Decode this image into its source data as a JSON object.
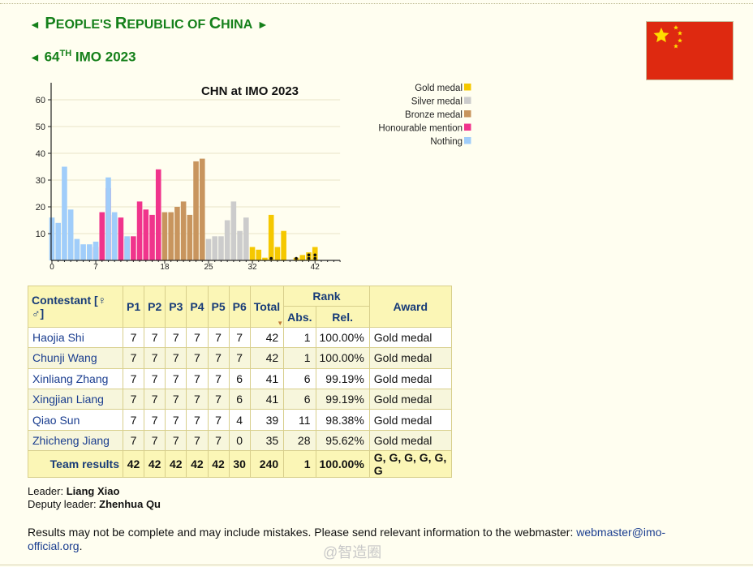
{
  "heading": {
    "country_arrow_left": "◄",
    "country_first_p": "P",
    "country_rest1": "EOPLE'S ",
    "country_first_r": "R",
    "country_rest2": "EPUBLIC OF ",
    "country_first_c": "C",
    "country_rest3": "HINA",
    "country_arrow_right": "►",
    "imo_arrow": "◄",
    "imo_num": "64",
    "imo_suffix": "TH",
    "imo_rest": " IMO 2023"
  },
  "flag": {
    "colors": {
      "red": "#de2910",
      "star": "#ffde00"
    }
  },
  "chart_data": {
    "type": "bar",
    "title": "CHN at IMO 2023",
    "x": [
      0,
      1,
      2,
      3,
      4,
      5,
      6,
      7,
      8,
      9,
      10,
      11,
      12,
      13,
      14,
      15,
      16,
      17,
      18,
      19,
      20,
      21,
      22,
      23,
      24,
      25,
      26,
      27,
      28,
      29,
      30,
      31,
      32,
      33,
      34,
      35,
      36,
      37,
      38,
      39,
      40,
      41,
      42
    ],
    "series": [
      {
        "name": "Gold medal",
        "color": "#f5c800",
        "values": [
          0,
          0,
          0,
          0,
          0,
          0,
          0,
          0,
          0,
          0,
          0,
          0,
          0,
          0,
          0,
          0,
          0,
          0,
          0,
          0,
          0,
          0,
          0,
          0,
          0,
          0,
          0,
          0,
          0,
          0,
          0,
          0,
          5,
          4,
          1,
          17,
          5,
          11,
          0,
          1,
          2,
          3,
          5
        ]
      },
      {
        "name": "Silver medal",
        "color": "#cccccc",
        "values": [
          0,
          0,
          0,
          0,
          0,
          0,
          0,
          0,
          0,
          0,
          0,
          0,
          0,
          0,
          0,
          0,
          0,
          0,
          0,
          0,
          0,
          0,
          0,
          0,
          0,
          8,
          9,
          9,
          15,
          22,
          11,
          16,
          0,
          0,
          0,
          0,
          0,
          0,
          0,
          0,
          0,
          0,
          0
        ]
      },
      {
        "name": "Bronze medal",
        "color": "#c8955e",
        "values": [
          0,
          0,
          0,
          0,
          0,
          0,
          0,
          0,
          0,
          0,
          0,
          0,
          0,
          0,
          0,
          0,
          0,
          0,
          18,
          18,
          20,
          22,
          17,
          37,
          38,
          0,
          0,
          0,
          0,
          0,
          0,
          0,
          0,
          0,
          0,
          0,
          0,
          0,
          0,
          0,
          0,
          0,
          0
        ]
      },
      {
        "name": "Honourable mention",
        "color": "#f0348c",
        "values": [
          0,
          0,
          0,
          0,
          0,
          0,
          0,
          5,
          18,
          27,
          17,
          16,
          8,
          9,
          22,
          19,
          17,
          34,
          0,
          0,
          0,
          0,
          0,
          0,
          0,
          0,
          0,
          0,
          0,
          0,
          0,
          0,
          0,
          0,
          0,
          0,
          0,
          0,
          0,
          0,
          0,
          0,
          0
        ]
      },
      {
        "name": "Nothing",
        "color": "#a0cdfa",
        "values": [
          16,
          14,
          35,
          19,
          8,
          6,
          6,
          7,
          0,
          31,
          18,
          0,
          9,
          0,
          0,
          0,
          0,
          0,
          0,
          0,
          0,
          0,
          0,
          0,
          0,
          0,
          0,
          0,
          0,
          0,
          0,
          0,
          0,
          0,
          0,
          0,
          0,
          0,
          0,
          0,
          0,
          0,
          0
        ]
      }
    ],
    "team_markers": {
      "x": [
        35,
        39,
        41,
        42
      ],
      "counts": [
        1,
        1,
        2,
        2
      ]
    },
    "x_ticks": [
      0,
      7,
      18,
      25,
      32,
      42
    ],
    "y_ticks": [
      10,
      20,
      30,
      40,
      50,
      60
    ],
    "xlim": [
      0,
      46
    ],
    "ylim": [
      0,
      66
    ],
    "legend_position": "top-right"
  },
  "table": {
    "headers": {
      "contestant": "Contestant [♀ ♂]",
      "p1": "P1",
      "p2": "P2",
      "p3": "P3",
      "p4": "P4",
      "p5": "P5",
      "p6": "P6",
      "total": "Total",
      "rank": "Rank",
      "abs": "Abs.",
      "rel": "Rel.",
      "award": "Award"
    },
    "rows": [
      {
        "name": "Haojia Shi",
        "p": [
          "7",
          "7",
          "7",
          "7",
          "7",
          "7"
        ],
        "total": "42",
        "abs": "1",
        "rel": "100.00%",
        "award": "Gold medal"
      },
      {
        "name": "Chunji Wang",
        "p": [
          "7",
          "7",
          "7",
          "7",
          "7",
          "7"
        ],
        "total": "42",
        "abs": "1",
        "rel": "100.00%",
        "award": "Gold medal"
      },
      {
        "name": "Xinliang Zhang",
        "p": [
          "7",
          "7",
          "7",
          "7",
          "7",
          "6"
        ],
        "total": "41",
        "abs": "6",
        "rel": "99.19%",
        "award": "Gold medal"
      },
      {
        "name": "Xingjian Liang",
        "p": [
          "7",
          "7",
          "7",
          "7",
          "7",
          "6"
        ],
        "total": "41",
        "abs": "6",
        "rel": "99.19%",
        "award": "Gold medal"
      },
      {
        "name": "Qiao Sun",
        "p": [
          "7",
          "7",
          "7",
          "7",
          "7",
          "4"
        ],
        "total": "39",
        "abs": "11",
        "rel": "98.38%",
        "award": "Gold medal"
      },
      {
        "name": "Zhicheng Jiang",
        "p": [
          "7",
          "7",
          "7",
          "7",
          "7",
          "0"
        ],
        "total": "35",
        "abs": "28",
        "rel": "95.62%",
        "award": "Gold medal"
      }
    ],
    "team": {
      "label": "Team results",
      "p": [
        "42",
        "42",
        "42",
        "42",
        "42",
        "30"
      ],
      "total": "240",
      "abs": "1",
      "rel": "100.00%",
      "award": "G, G, G, G, G, G"
    }
  },
  "leaders": {
    "leader_label": "Leader: ",
    "leader_name": "Liang Xiao",
    "deputy_label": "Deputy leader: ",
    "deputy_name": "Zhenhua Qu"
  },
  "footer": {
    "note": "Results may not be complete and may include mistakes. Please send relevant information to the webmaster: ",
    "email": "webmaster@imo-official.org",
    "end": "."
  },
  "watermark": "@智造圈"
}
